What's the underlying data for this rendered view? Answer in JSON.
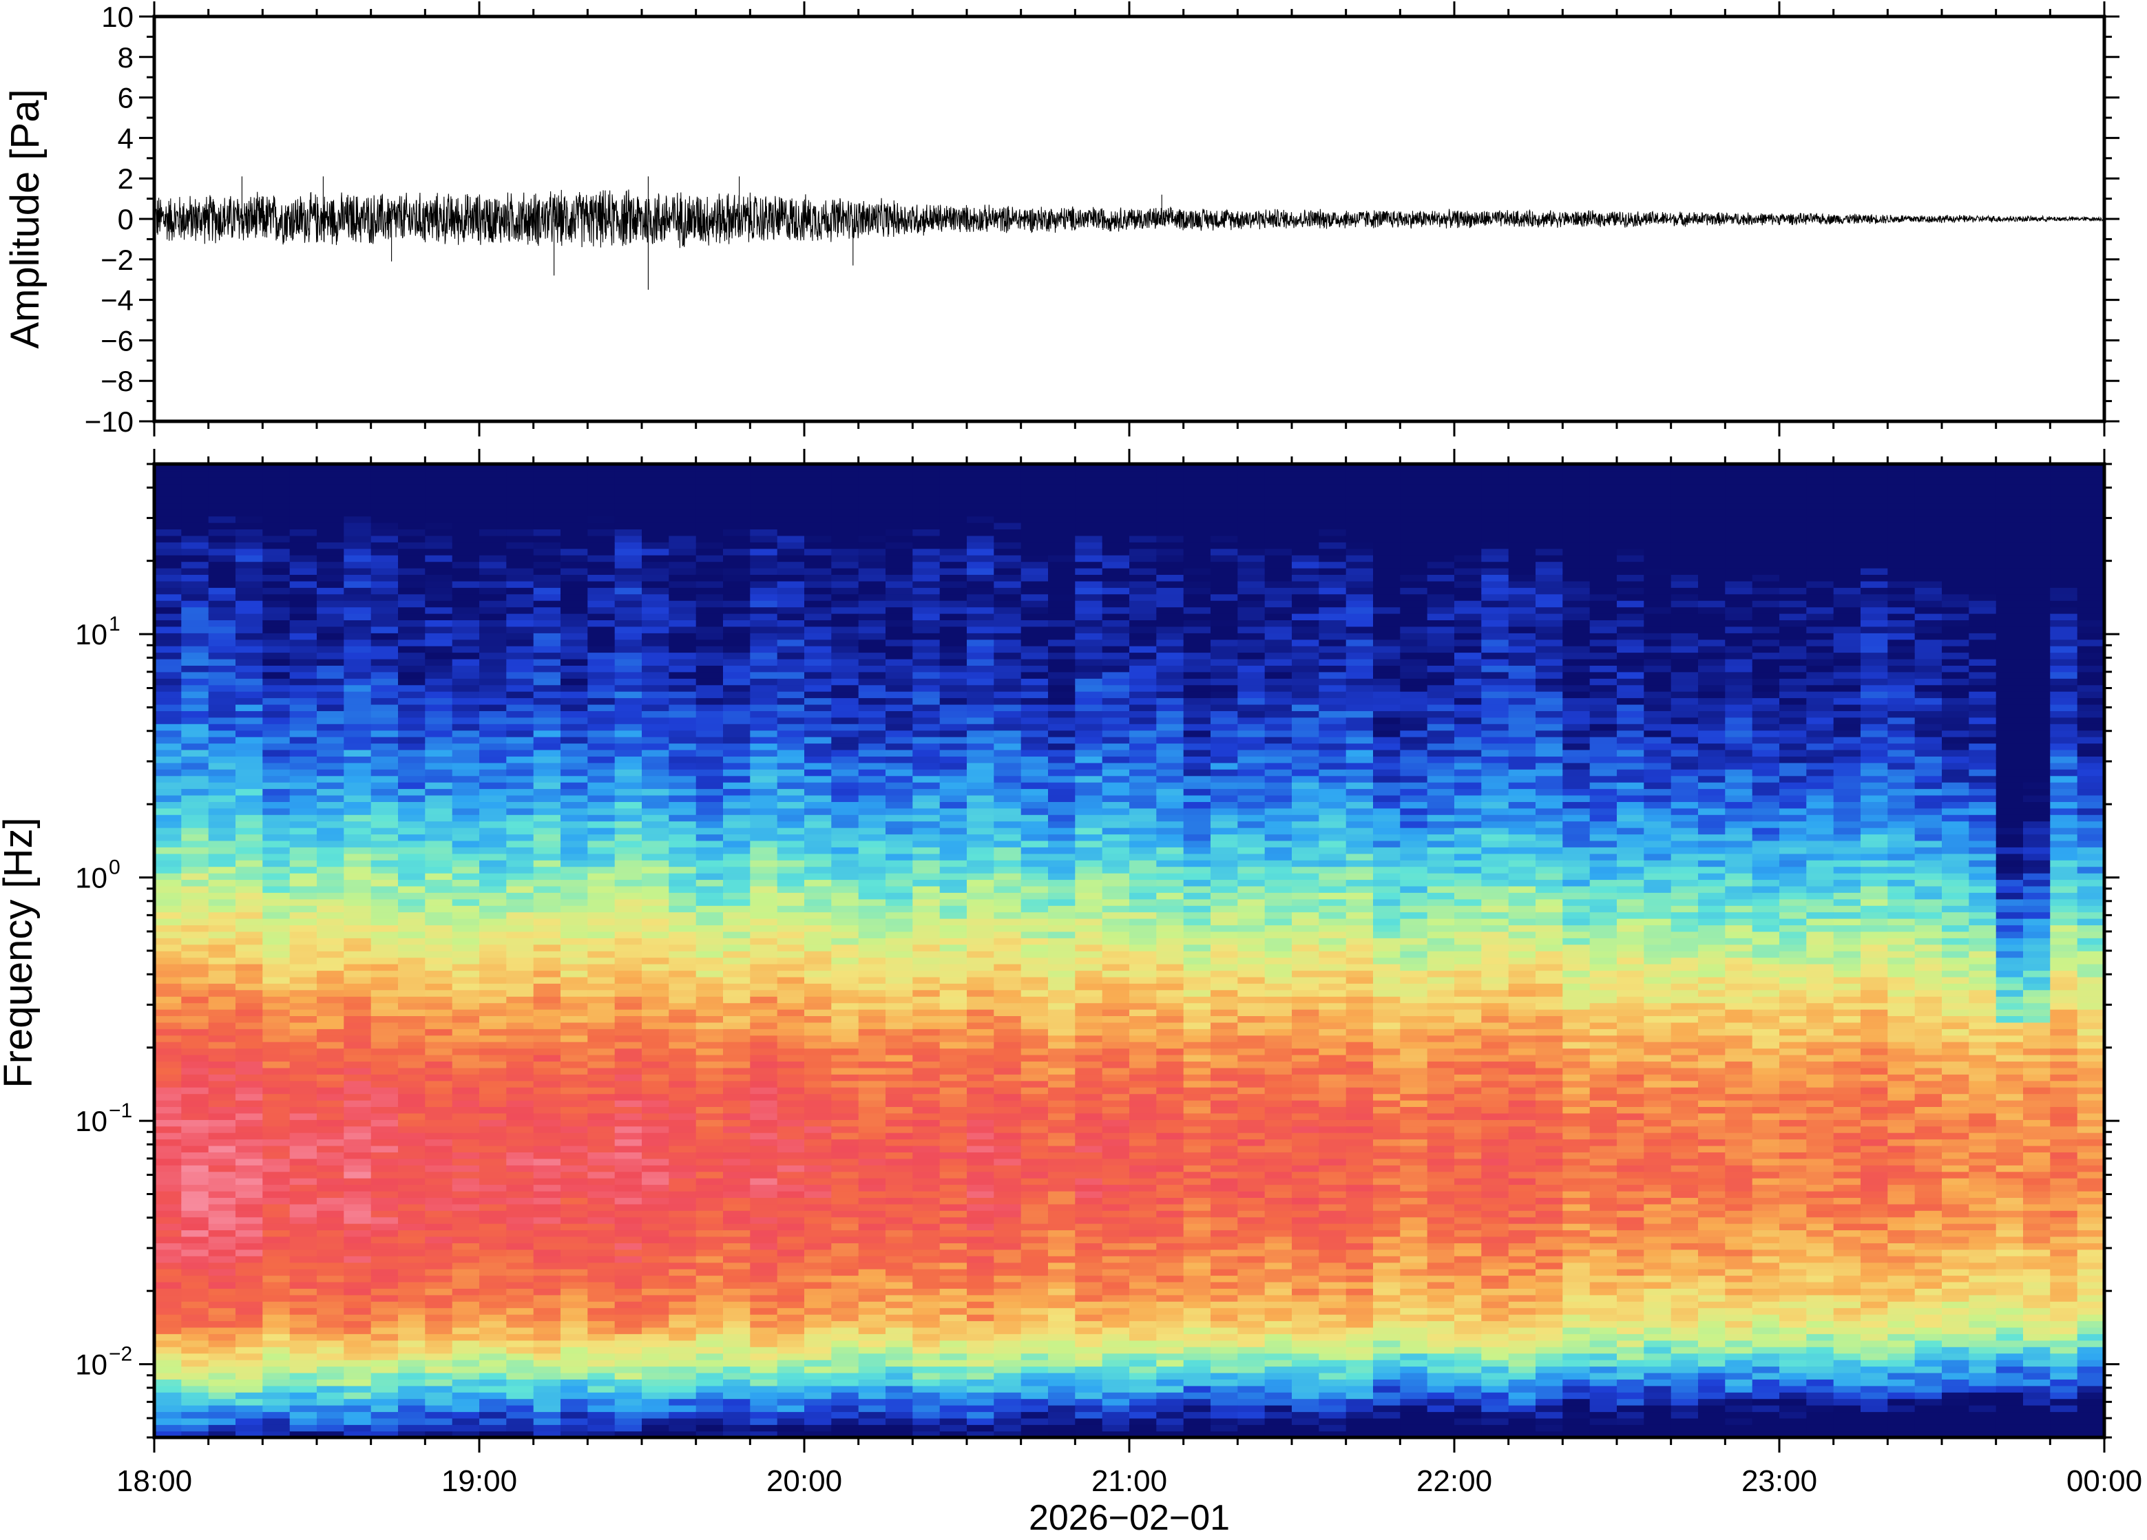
{
  "chart_data": [
    {
      "type": "line",
      "panel": "waveform",
      "ylabel": "Amplitude [Pa]",
      "ylim": [
        -10,
        10
      ],
      "yticks": [
        10,
        8,
        6,
        4,
        2,
        0,
        -2,
        -4,
        -6,
        -8,
        -10
      ],
      "ytick_labels": [
        "10",
        "8",
        "6",
        "4",
        "2",
        "0",
        "−2",
        "−4",
        "−6",
        "−8",
        "−10"
      ],
      "x_hours": [
        18,
        18.5,
        19,
        19.5,
        20,
        20.5,
        21,
        21.5,
        22,
        22.5,
        23,
        23.5,
        24
      ],
      "envelope_pa": [
        1.2,
        1.3,
        1.3,
        1.5,
        1.2,
        0.7,
        0.6,
        0.5,
        0.45,
        0.4,
        0.3,
        0.2,
        0.1
      ],
      "peaks": [
        {
          "x": 18.27,
          "y": 2.1
        },
        {
          "x": 18.52,
          "y": 2.1
        },
        {
          "x": 18.73,
          "y": -2.1
        },
        {
          "x": 19.23,
          "y": -2.8
        },
        {
          "x": 19.52,
          "y": -3.5
        },
        {
          "x": 19.52,
          "y": 2.1
        },
        {
          "x": 19.8,
          "y": 2.1
        },
        {
          "x": 20.15,
          "y": -2.3
        },
        {
          "x": 21.1,
          "y": 1.2
        }
      ],
      "line_color": "#000000"
    },
    {
      "type": "heatmap",
      "panel": "spectrogram",
      "ylabel": "Frequency [Hz]",
      "xlabel": "2026−02−01",
      "yscale": "log",
      "ylim_hz": [
        0.005,
        50
      ],
      "yticks_hz": [
        0.01,
        0.1,
        1,
        10
      ],
      "ytick_labels": [
        {
          "base": "10",
          "exp": "−2"
        },
        {
          "base": "10",
          "exp": "−1"
        },
        {
          "base": "10",
          "exp": "0"
        },
        {
          "base": "10",
          "exp": "1"
        }
      ],
      "xlim_hours": [
        18,
        24
      ],
      "xticks_hours": [
        18,
        19,
        20,
        21,
        22,
        23,
        24
      ],
      "xtick_labels": [
        "18:00",
        "19:00",
        "20:00",
        "21:00",
        "22:00",
        "23:00",
        "00:00"
      ],
      "colormap": "rainbow (dark blue = low power, red/pink = high power)",
      "colormap_stops": [
        "#0a0d6e",
        "#1e3fd6",
        "#2fa6f2",
        "#5fe3d8",
        "#c9f38a",
        "#f3e27a",
        "#f9ad52",
        "#f46a48",
        "#f04d5a",
        "#f78a9c"
      ]
    }
  ]
}
